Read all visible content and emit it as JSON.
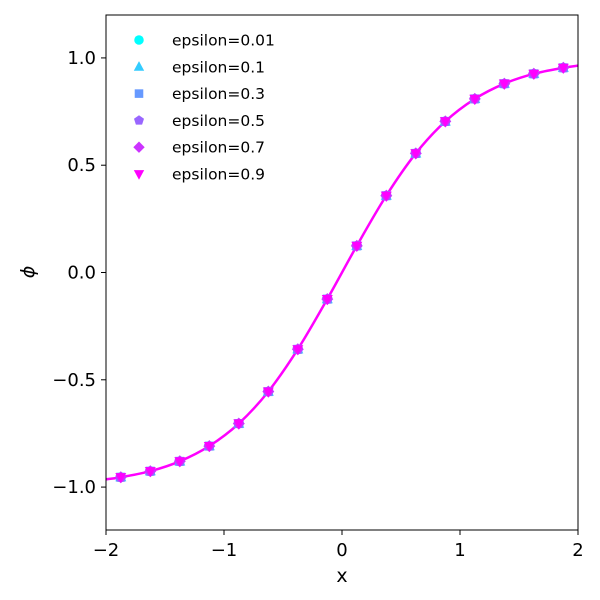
{
  "chart_data": {
    "type": "line",
    "title": "",
    "xlabel": "x",
    "ylabel": "ϕ",
    "xlim": [
      -2,
      2
    ],
    "ylim": [
      -1.2,
      1.2
    ],
    "xticks": [
      -2,
      -1,
      0,
      1,
      2
    ],
    "xtick_labels": [
      "−2",
      "−1",
      "0",
      "1",
      "2"
    ],
    "yticks": [
      -1.0,
      -0.5,
      0.0,
      0.5,
      1.0
    ],
    "ytick_labels": [
      "−1.0",
      "−0.5",
      "0.0",
      "0.5",
      "1.0"
    ],
    "grid": false,
    "legend_position": "top-left",
    "curve": {
      "color": "#ff00ff",
      "x": [
        -2.0,
        -1.875,
        -1.625,
        -1.375,
        -1.125,
        -0.875,
        -0.625,
        -0.375,
        -0.125,
        0.125,
        0.375,
        0.625,
        0.875,
        1.125,
        1.375,
        1.625,
        1.875,
        2.0
      ],
      "y": [
        -0.964,
        -0.954,
        -0.926,
        -0.88,
        -0.809,
        -0.704,
        -0.555,
        -0.358,
        -0.124,
        0.124,
        0.358,
        0.555,
        0.704,
        0.809,
        0.88,
        0.926,
        0.954,
        0.964
      ]
    },
    "series": [
      {
        "name": "epsilon=0.01",
        "marker": "circle",
        "color": "#00ffff",
        "x": [
          -1.875,
          -1.625,
          -1.375,
          -1.125,
          -0.875,
          -0.625,
          -0.375,
          -0.125,
          0.125,
          0.375,
          0.625,
          0.875,
          1.125,
          1.375,
          1.625,
          1.875
        ],
        "y": [
          -0.954,
          -0.926,
          -0.88,
          -0.809,
          -0.704,
          -0.555,
          -0.358,
          -0.124,
          0.124,
          0.358,
          0.555,
          0.704,
          0.809,
          0.88,
          0.926,
          0.954
        ]
      },
      {
        "name": "epsilon=0.1",
        "marker": "triangle-up",
        "color": "#33ccff",
        "x": [
          -1.875,
          -1.625,
          -1.375,
          -1.125,
          -0.875,
          -0.625,
          -0.375,
          -0.125,
          0.125,
          0.375,
          0.625,
          0.875,
          1.125,
          1.375,
          1.625,
          1.875
        ],
        "y": [
          -0.954,
          -0.926,
          -0.88,
          -0.809,
          -0.704,
          -0.555,
          -0.358,
          -0.124,
          0.124,
          0.358,
          0.555,
          0.704,
          0.809,
          0.88,
          0.926,
          0.954
        ]
      },
      {
        "name": "epsilon=0.3",
        "marker": "square",
        "color": "#6699ff",
        "x": [
          -1.875,
          -1.625,
          -1.375,
          -1.125,
          -0.875,
          -0.625,
          -0.375,
          -0.125,
          0.125,
          0.375,
          0.625,
          0.875,
          1.125,
          1.375,
          1.625,
          1.875
        ],
        "y": [
          -0.954,
          -0.926,
          -0.88,
          -0.809,
          -0.704,
          -0.555,
          -0.358,
          -0.124,
          0.124,
          0.358,
          0.555,
          0.704,
          0.809,
          0.88,
          0.926,
          0.954
        ]
      },
      {
        "name": "epsilon=0.5",
        "marker": "pentagon",
        "color": "#9966ff",
        "x": [
          -1.875,
          -1.625,
          -1.375,
          -1.125,
          -0.875,
          -0.625,
          -0.375,
          -0.125,
          0.125,
          0.375,
          0.625,
          0.875,
          1.125,
          1.375,
          1.625,
          1.875
        ],
        "y": [
          -0.954,
          -0.926,
          -0.88,
          -0.809,
          -0.704,
          -0.555,
          -0.358,
          -0.124,
          0.124,
          0.358,
          0.555,
          0.704,
          0.809,
          0.88,
          0.926,
          0.954
        ]
      },
      {
        "name": "epsilon=0.7",
        "marker": "diamond",
        "color": "#cc33ff",
        "x": [
          -1.875,
          -1.625,
          -1.375,
          -1.125,
          -0.875,
          -0.625,
          -0.375,
          -0.125,
          0.125,
          0.375,
          0.625,
          0.875,
          1.125,
          1.375,
          1.625,
          1.875
        ],
        "y": [
          -0.954,
          -0.926,
          -0.88,
          -0.809,
          -0.704,
          -0.555,
          -0.358,
          -0.124,
          0.124,
          0.358,
          0.555,
          0.704,
          0.809,
          0.88,
          0.926,
          0.954
        ]
      },
      {
        "name": "epsilon=0.9",
        "marker": "triangle-down",
        "color": "#ff00ff",
        "x": [
          -1.875,
          -1.625,
          -1.375,
          -1.125,
          -0.875,
          -0.625,
          -0.375,
          -0.125,
          0.125,
          0.375,
          0.625,
          0.875,
          1.125,
          1.375,
          1.625,
          1.875
        ],
        "y": [
          -0.954,
          -0.926,
          -0.88,
          -0.809,
          -0.704,
          -0.555,
          -0.358,
          -0.124,
          0.124,
          0.358,
          0.555,
          0.704,
          0.809,
          0.88,
          0.926,
          0.954
        ]
      }
    ]
  }
}
